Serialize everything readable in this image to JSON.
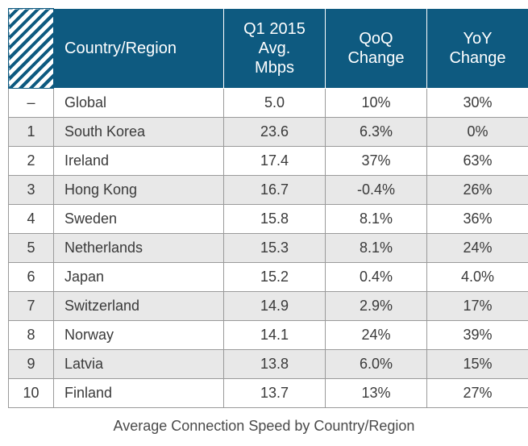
{
  "table": {
    "headers": {
      "country": "Country/Region",
      "speed": [
        "Q1 2015",
        "Avg.",
        "Mbps"
      ],
      "qoq": [
        "QoQ",
        "Change"
      ],
      "yoy": [
        "YoY",
        "Change"
      ]
    },
    "header_color": "#0e5a80",
    "shade_color": "#e8e8e8",
    "rows": [
      {
        "rank": "–",
        "country": "Global",
        "speed": "5.0",
        "qoq": "10%",
        "yoy": "30%"
      },
      {
        "rank": "1",
        "country": "South Korea",
        "speed": "23.6",
        "qoq": "6.3%",
        "yoy": "0%"
      },
      {
        "rank": "2",
        "country": "Ireland",
        "speed": "17.4",
        "qoq": "37%",
        "yoy": "63%"
      },
      {
        "rank": "3",
        "country": "Hong Kong",
        "speed": "16.7",
        "qoq": "-0.4%",
        "yoy": "26%"
      },
      {
        "rank": "4",
        "country": "Sweden",
        "speed": "15.8",
        "qoq": "8.1%",
        "yoy": "36%"
      },
      {
        "rank": "5",
        "country": "Netherlands",
        "speed": "15.3",
        "qoq": "8.1%",
        "yoy": "24%"
      },
      {
        "rank": "6",
        "country": "Japan",
        "speed": "15.2",
        "qoq": "0.4%",
        "yoy": "4.0%"
      },
      {
        "rank": "7",
        "country": "Switzerland",
        "speed": "14.9",
        "qoq": "2.9%",
        "yoy": "17%"
      },
      {
        "rank": "8",
        "country": "Norway",
        "speed": "14.1",
        "qoq": "24%",
        "yoy": "39%"
      },
      {
        "rank": "9",
        "country": "Latvia",
        "speed": "13.8",
        "qoq": "6.0%",
        "yoy": "15%"
      },
      {
        "rank": "10",
        "country": "Finland",
        "speed": "13.7",
        "qoq": "13%",
        "yoy": "27%"
      }
    ]
  },
  "caption": "Average Connection Speed by Country/Region"
}
